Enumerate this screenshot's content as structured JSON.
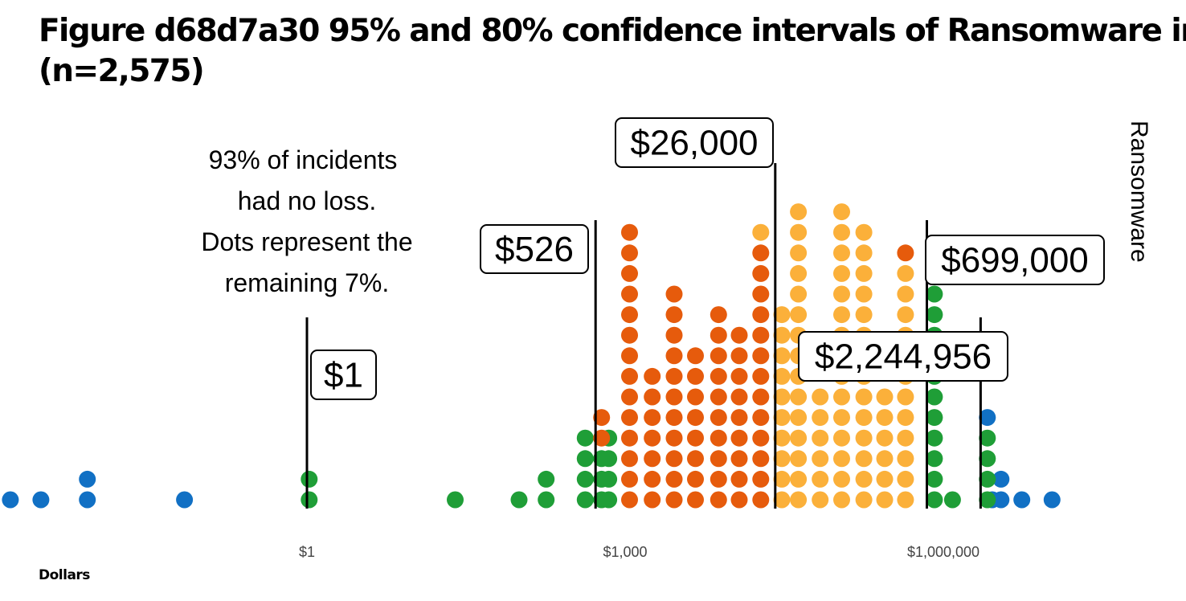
{
  "chart_data": {
    "type": "dotplot",
    "title_line1": "Figure d68d7a30 95% and 80% confidence intervals of Ransomware ir",
    "title_line2": "(n=2,575)",
    "xlabel": "Dollars",
    "facet_label": "Ransomware",
    "x_scale": "log",
    "xlim": [
      0.0005,
      200000000
    ],
    "x_ticks": [
      {
        "value": 1,
        "label": "$1"
      },
      {
        "value": 1000,
        "label": "$1,000"
      },
      {
        "value": 1000000,
        "label": "$1,000,000"
      }
    ],
    "annotation": [
      "93% of incidents",
      "had no loss.",
      "Dots represent the",
      "remaining 7%."
    ],
    "markers": [
      {
        "value": 1,
        "label": "$1"
      },
      {
        "value": 526,
        "label": "$526"
      },
      {
        "value": 26000,
        "label": "$26,000"
      },
      {
        "value": 699000,
        "label": "$699,000"
      },
      {
        "value": 2244956,
        "label": "$2,244,956"
      }
    ],
    "colors": {
      "outside_95": "#1170c4",
      "within_95": "#1f9e37",
      "within_80_lower": "#e65b0c",
      "within_80_upper": "#fbb03a"
    },
    "bins": [
      {
        "x": 0.0016,
        "count": 1,
        "color": "outside_95"
      },
      {
        "x": 0.0031,
        "count": 1,
        "color": "outside_95"
      },
      {
        "x": 0.0085,
        "count": 2,
        "color": "outside_95"
      },
      {
        "x": 0.07,
        "count": 1,
        "color": "outside_95"
      },
      {
        "x": 1.05,
        "count": 2,
        "color": "within_95"
      },
      {
        "x": 25,
        "count": 1,
        "color": "within_95"
      },
      {
        "x": 100,
        "count": 1,
        "color": "within_95"
      },
      {
        "x": 180,
        "count": 2,
        "color": "within_95"
      },
      {
        "x": 420,
        "count": 4,
        "color": "within_95"
      },
      {
        "x": 700,
        "count": 4,
        "color": "within_95"
      },
      {
        "x": 600,
        "count": 3,
        "color": "within_95"
      },
      {
        "x": 600,
        "count": 2,
        "color": "within_80_lower"
      },
      {
        "x": 1100,
        "count": 14,
        "color": "within_80_lower"
      },
      {
        "x": 1800,
        "count": 7,
        "color": "within_80_lower"
      },
      {
        "x": 2900,
        "count": 11,
        "color": "within_80_lower"
      },
      {
        "x": 4600,
        "count": 8,
        "color": "within_80_lower"
      },
      {
        "x": 7600,
        "count": 10,
        "color": "within_80_lower"
      },
      {
        "x": 11900,
        "count": 9,
        "color": "within_80_lower"
      },
      {
        "x": 19000,
        "count": 13,
        "color": "within_80_lower"
      },
      {
        "x": 19000,
        "count": 1,
        "color": "within_80_upper"
      },
      {
        "x": 30000,
        "count": 10,
        "color": "within_80_upper"
      },
      {
        "x": 43000,
        "count": 15,
        "color": "within_80_upper"
      },
      {
        "x": 69000,
        "count": 6,
        "color": "within_80_upper"
      },
      {
        "x": 110000,
        "count": 15,
        "color": "within_80_upper"
      },
      {
        "x": 178000,
        "count": 14,
        "color": "within_80_upper"
      },
      {
        "x": 280000,
        "count": 6,
        "color": "within_80_upper"
      },
      {
        "x": 440000,
        "count": 12,
        "color": "within_80_upper"
      },
      {
        "x": 440000,
        "count": 1,
        "color": "within_80_lower"
      },
      {
        "x": 1220000,
        "count": 1,
        "color": "within_95"
      },
      {
        "x": 824000,
        "count": 11,
        "color": "within_95"
      },
      {
        "x": 2890000,
        "count": 1,
        "color": "outside_95"
      },
      {
        "x": 3500000,
        "count": 2,
        "color": "outside_95"
      },
      {
        "x": 5500000,
        "count": 1,
        "color": "outside_95"
      },
      {
        "x": 10600000,
        "count": 1,
        "color": "outside_95"
      },
      {
        "x": 2600000,
        "count": 4,
        "color": "within_95"
      },
      {
        "x": 2600000,
        "count": 1,
        "color": "outside_95"
      }
    ]
  }
}
